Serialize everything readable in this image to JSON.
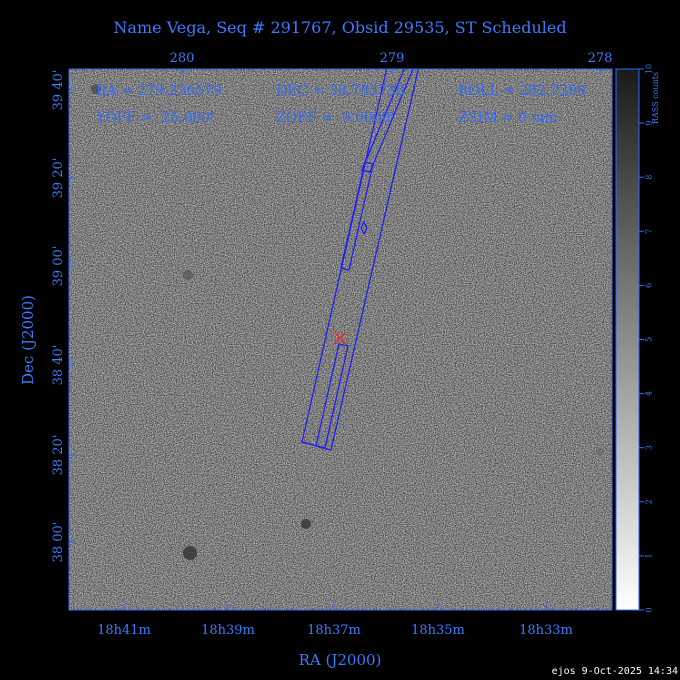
{
  "title": "Name Vega, Seq # 291767, Obsid 29535, ST Scheduled",
  "info": {
    "ra": "RA = 279.236579",
    "dec": "DEC = 38.785736",
    "roll": "ROLL = 282.7299",
    "yoff": "YOFF =  25.000'",
    "zoff": "ZOFF =  0.0000'",
    "zsim": "ZSIM = 0 mm"
  },
  "top_axis": [
    "280",
    "279",
    "278"
  ],
  "left_axis": [
    "39 40'",
    "39 20'",
    "39 00'",
    "38 40'",
    "38 20'",
    "38 00'"
  ],
  "bottom_axis": [
    "18h41m",
    "18h39m",
    "18h37m",
    "18h35m",
    "18h33m"
  ],
  "x_label": "RA (J2000)",
  "y_label": "Dec (J2000)",
  "colorbar": {
    "label": "RASS counts",
    "ticks": [
      "0",
      "1",
      "2",
      "3",
      "4",
      "5",
      "6",
      "7",
      "8",
      "9",
      "10"
    ],
    "min": 0,
    "max": 10
  },
  "footer": "ejos  9-Oct-2025 14:34",
  "colors": {
    "outline": "#1a1aff",
    "marker": "#ff2020",
    "text": "#3a7cff"
  }
}
